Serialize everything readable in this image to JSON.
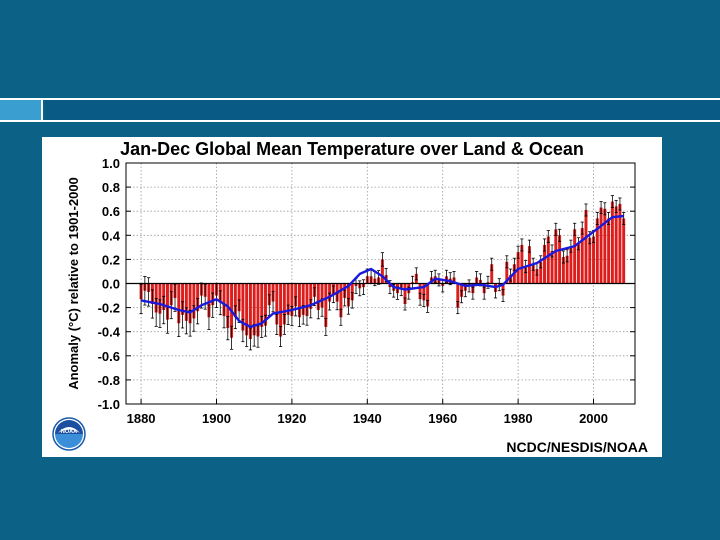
{
  "slide": {
    "colors": {
      "background": "#0b6186",
      "accent_light": "#3a9fd0",
      "accent_dark": "#0a5a86",
      "divider": "#ffffff"
    }
  },
  "chart": {
    "footer": "NCDC/NESDIS/NOAA",
    "logo_icon": "noaa-logo-icon",
    "logo_text": "NOAA"
  },
  "chart_data": {
    "type": "bar",
    "title": "Jan-Dec Global Mean Temperature over Land & Ocean",
    "xlabel": "",
    "ylabel": "Anomaly (°C) relative to 1901-2000",
    "xlim": [
      1876,
      2011
    ],
    "ylim": [
      -1.0,
      1.0
    ],
    "yticks": [
      "1.0",
      "0.8",
      "0.6",
      "0.4",
      "0.2",
      "0.0",
      "-0.2",
      "-0.4",
      "-0.6",
      "-0.8",
      "-1.0"
    ],
    "yticks_values": [
      1.0,
      0.8,
      0.6,
      0.4,
      0.2,
      0.0,
      -0.2,
      -0.4,
      -0.6,
      -0.8,
      -1.0
    ],
    "xticks": [
      "1880",
      "1900",
      "1920",
      "1940",
      "1960",
      "1980",
      "2000"
    ],
    "xticks_values": [
      1880,
      1900,
      1920,
      1940,
      1960,
      1980,
      2000
    ],
    "grid": true,
    "bar_color": "#dd1c1c",
    "smooth_color": "#1a1adc",
    "errorbar_color": "#000000",
    "start_year": 1880,
    "values": [
      -0.13,
      -0.06,
      -0.07,
      -0.17,
      -0.24,
      -0.25,
      -0.22,
      -0.3,
      -0.18,
      -0.12,
      -0.33,
      -0.26,
      -0.31,
      -0.33,
      -0.29,
      -0.23,
      -0.1,
      -0.11,
      -0.28,
      -0.18,
      -0.1,
      -0.16,
      -0.27,
      -0.37,
      -0.45,
      -0.28,
      -0.23,
      -0.39,
      -0.43,
      -0.46,
      -0.43,
      -0.44,
      -0.36,
      -0.35,
      -0.18,
      -0.15,
      -0.34,
      -0.44,
      -0.34,
      -0.26,
      -0.27,
      -0.19,
      -0.28,
      -0.26,
      -0.27,
      -0.21,
      -0.11,
      -0.22,
      -0.2,
      -0.36,
      -0.15,
      -0.09,
      -0.15,
      -0.28,
      -0.12,
      -0.19,
      -0.14,
      -0.02,
      -0.04,
      -0.03,
      0.06,
      0.06,
      0.04,
      0.05,
      0.2,
      0.07,
      -0.03,
      -0.06,
      -0.08,
      -0.05,
      -0.17,
      -0.08,
      0.01,
      0.08,
      -0.13,
      -0.14,
      -0.19,
      0.05,
      0.06,
      0.03,
      -0.02,
      0.06,
      0.04,
      0.05,
      -0.2,
      -0.11,
      -0.06,
      -0.02,
      -0.08,
      0.05,
      0.03,
      -0.08,
      0.01,
      0.16,
      -0.07,
      -0.01,
      -0.1,
      0.18,
      0.07,
      0.16,
      0.26,
      0.32,
      0.14,
      0.31,
      0.16,
      0.12,
      0.18,
      0.32,
      0.39,
      0.27,
      0.45,
      0.4,
      0.22,
      0.23,
      0.31,
      0.45,
      0.33,
      0.46,
      0.61,
      0.38,
      0.39,
      0.54,
      0.63,
      0.62,
      0.54,
      0.68,
      0.64,
      0.66,
      0.54
    ],
    "smooth": [
      {
        "x": 1880,
        "y": -0.14
      },
      {
        "x": 1885,
        "y": -0.17
      },
      {
        "x": 1890,
        "y": -0.22
      },
      {
        "x": 1893,
        "y": -0.24
      },
      {
        "x": 1896,
        "y": -0.18
      },
      {
        "x": 1900,
        "y": -0.13
      },
      {
        "x": 1903,
        "y": -0.19
      },
      {
        "x": 1906,
        "y": -0.31
      },
      {
        "x": 1909,
        "y": -0.36
      },
      {
        "x": 1912,
        "y": -0.33
      },
      {
        "x": 1915,
        "y": -0.25
      },
      {
        "x": 1920,
        "y": -0.22
      },
      {
        "x": 1925,
        "y": -0.18
      },
      {
        "x": 1930,
        "y": -0.11
      },
      {
        "x": 1935,
        "y": -0.02
      },
      {
        "x": 1938,
        "y": 0.08
      },
      {
        "x": 1941,
        "y": 0.12
      },
      {
        "x": 1944,
        "y": 0.06
      },
      {
        "x": 1947,
        "y": -0.03
      },
      {
        "x": 1950,
        "y": -0.05
      },
      {
        "x": 1955,
        "y": -0.03
      },
      {
        "x": 1958,
        "y": 0.04
      },
      {
        "x": 1962,
        "y": 0.02
      },
      {
        "x": 1966,
        "y": -0.02
      },
      {
        "x": 1970,
        "y": -0.01
      },
      {
        "x": 1974,
        "y": -0.03
      },
      {
        "x": 1976,
        "y": -0.01
      },
      {
        "x": 1980,
        "y": 0.12
      },
      {
        "x": 1985,
        "y": 0.17
      },
      {
        "x": 1990,
        "y": 0.27
      },
      {
        "x": 1995,
        "y": 0.31
      },
      {
        "x": 2000,
        "y": 0.43
      },
      {
        "x": 2005,
        "y": 0.55
      },
      {
        "x": 2008,
        "y": 0.56
      }
    ]
  }
}
